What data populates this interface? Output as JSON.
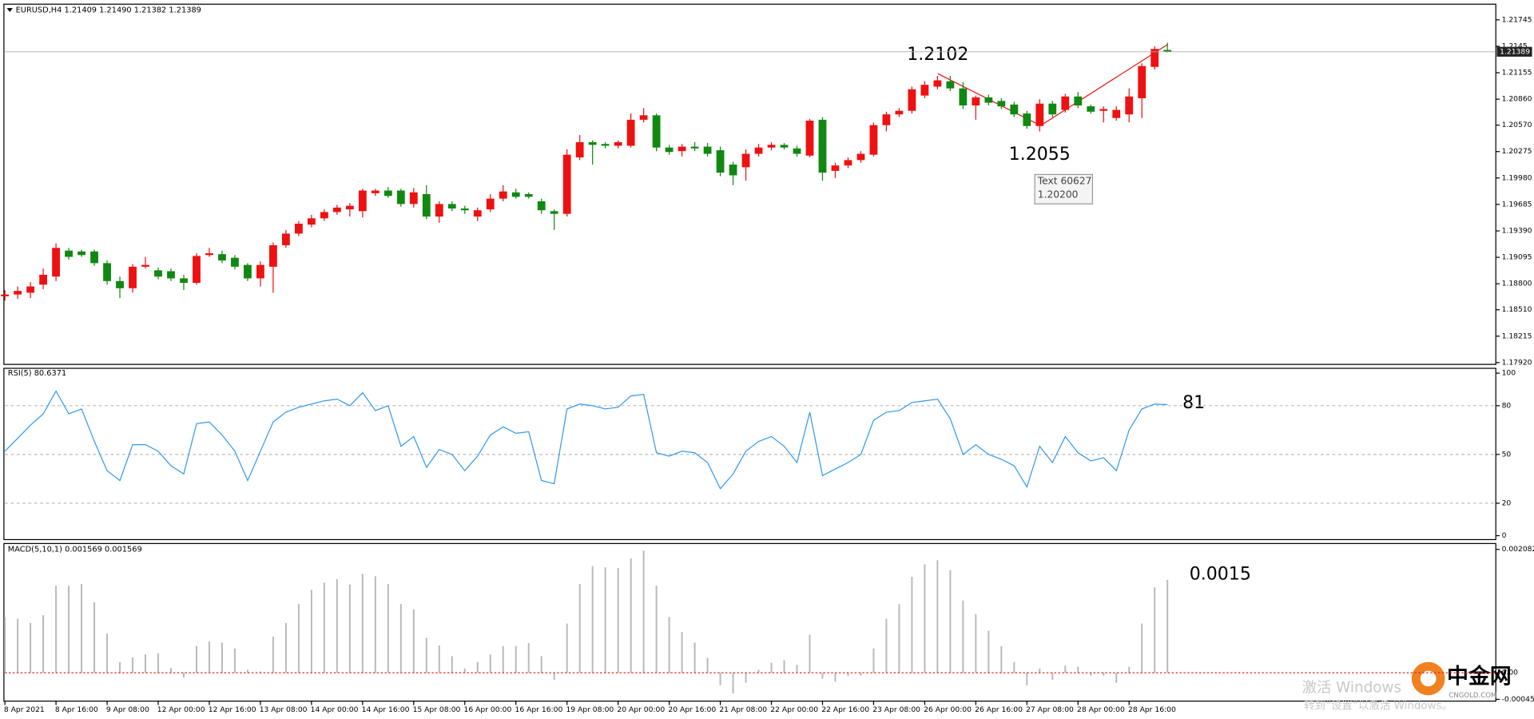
{
  "chart_data": [
    {
      "type": "candlestick",
      "title": "EURUSD,H4  1.21409 1.21490 1.21382 1.21389",
      "up_color": "#ee1111",
      "down_color": "#118811",
      "categories": [
        "8 Apr 2021",
        null,
        null,
        null,
        "8 Apr 16:00",
        null,
        null,
        null,
        "9 Apr 08:00",
        null,
        null,
        null,
        "12 Apr 00:00",
        null,
        null,
        null,
        "12 Apr 16:00",
        null,
        null,
        null,
        "13 Apr 08:00",
        null,
        null,
        null,
        "14 Apr 00:00",
        null,
        null,
        null,
        "14 Apr 16:00",
        null,
        null,
        null,
        "15 Apr 08:00",
        null,
        null,
        null,
        "16 Apr 00:00",
        null,
        null,
        null,
        "16 Apr 16:00",
        null,
        null,
        null,
        "19 Apr 08:00",
        null,
        null,
        null,
        "20 Apr 00:00",
        null,
        null,
        null,
        "20 Apr 16:00",
        null,
        null,
        null,
        "21 Apr 08:00",
        null,
        null,
        null,
        "22 Apr 00:00",
        null,
        null,
        null,
        "22 Apr 16:00",
        null,
        null,
        null,
        "23 Apr 08:00",
        null,
        null,
        null,
        "26 Apr 00:00",
        null,
        null,
        null,
        "26 Apr 16:00",
        null,
        null,
        null,
        "27 Apr 08:00",
        null,
        null,
        null,
        "28 Apr 00:00",
        null,
        null,
        null,
        "28 Apr 16:00",
        null,
        null,
        null
      ],
      "open": [
        1.1866,
        1.1868,
        1.187,
        1.1879,
        1.1888,
        1.1917,
        1.1916,
        1.1916,
        1.1903,
        1.1883,
        1.1875,
        1.1899,
        1.1895,
        1.1894,
        1.1886,
        1.1881,
        1.1912,
        1.1913,
        1.1909,
        1.1901,
        1.1886,
        1.1899,
        1.1923,
        1.1936,
        1.1946,
        1.1953,
        1.196,
        1.1963,
        1.1961,
        1.1981,
        1.1984,
        1.1984,
        1.1969,
        1.198,
        1.1955,
        1.1969,
        1.1964,
        1.1955,
        1.1963,
        1.1975,
        1.1982,
        1.198,
        1.1972,
        1.1961,
        1.1958,
        1.2021,
        1.2038,
        1.2036,
        1.2034,
        1.2034,
        1.2063,
        1.2068,
        1.2032,
        1.2028,
        1.2033,
        1.2033,
        1.2029,
        1.2013,
        1.201,
        1.2025,
        1.2032,
        1.2035,
        1.2031,
        1.2023,
        1.2063,
        1.2006,
        1.2012,
        1.2018,
        1.2024,
        1.2057,
        1.2069,
        1.2073,
        1.209,
        1.21,
        1.2106,
        1.2098,
        1.2079,
        1.2088,
        1.2084,
        1.208,
        1.207,
        1.2056,
        1.2081,
        1.2074,
        1.2089,
        1.2078,
        1.2073,
        1.2065,
        1.2069,
        1.2087,
        1.2122,
        1.21409
      ],
      "high": [
        1.1873,
        1.1877,
        1.1882,
        1.1897,
        1.1925,
        1.192,
        1.1918,
        1.1918,
        1.1906,
        1.1888,
        1.1902,
        1.191,
        1.1898,
        1.1897,
        1.189,
        1.1914,
        1.192,
        1.1917,
        1.1912,
        1.1903,
        1.1905,
        1.1926,
        1.194,
        1.195,
        1.1957,
        1.1963,
        1.1968,
        1.197,
        1.1986,
        1.1986,
        1.1988,
        1.1986,
        1.1987,
        1.199,
        1.1972,
        1.1972,
        1.1967,
        1.1965,
        1.198,
        1.199,
        1.1986,
        1.1982,
        1.1975,
        1.1963,
        1.203,
        1.2046,
        1.204,
        1.2038,
        1.204,
        1.207,
        1.2076,
        1.207,
        1.2035,
        1.2036,
        1.2038,
        1.2037,
        1.2033,
        1.2016,
        1.203,
        1.2036,
        1.2038,
        1.2037,
        1.2034,
        1.2064,
        1.2066,
        1.2015,
        1.2021,
        1.2028,
        1.206,
        1.2072,
        1.2076,
        1.21,
        1.2106,
        1.2112,
        1.2112,
        1.2105,
        1.209,
        1.2091,
        1.2087,
        1.2083,
        1.2073,
        1.2086,
        1.2084,
        1.2092,
        1.2094,
        1.208,
        1.2078,
        1.2078,
        1.2098,
        1.2126,
        1.2145,
        1.2149
      ],
      "low": [
        1.1861,
        1.1863,
        1.1864,
        1.1874,
        1.1883,
        1.1907,
        1.191,
        1.19,
        1.1879,
        1.1864,
        1.187,
        1.1897,
        1.1885,
        1.1883,
        1.1873,
        1.1879,
        1.191,
        1.1903,
        1.1896,
        1.1883,
        1.1877,
        1.187,
        1.192,
        1.1933,
        1.1943,
        1.195,
        1.1957,
        1.1955,
        1.1954,
        1.1978,
        1.1976,
        1.1966,
        1.1965,
        1.1952,
        1.1948,
        1.1961,
        1.1958,
        1.195,
        1.196,
        1.1972,
        1.1975,
        1.1975,
        1.1958,
        1.194,
        1.1955,
        1.2018,
        1.2013,
        1.2031,
        1.2031,
        1.2032,
        1.206,
        1.2028,
        1.2024,
        1.2022,
        1.2028,
        1.2022,
        1.2,
        1.199,
        1.1995,
        1.2022,
        1.2029,
        1.203,
        1.2022,
        1.2021,
        1.1995,
        1.1998,
        1.2009,
        1.2015,
        1.2022,
        1.205,
        1.2066,
        1.207,
        1.2087,
        1.2097,
        1.2095,
        1.2075,
        1.2063,
        1.2079,
        1.2075,
        1.2066,
        1.2053,
        1.205,
        1.2066,
        1.2071,
        1.2076,
        1.207,
        1.206,
        1.2062,
        1.206,
        1.2065,
        1.2119,
        1.21382
      ],
      "close": [
        1.1868,
        1.1872,
        1.1877,
        1.189,
        1.192,
        1.191,
        1.1912,
        1.1903,
        1.1883,
        1.1875,
        1.1899,
        1.1901,
        1.1888,
        1.1886,
        1.1881,
        1.1911,
        1.1914,
        1.1906,
        1.1899,
        1.1886,
        1.1901,
        1.1923,
        1.1936,
        1.1947,
        1.1953,
        1.196,
        1.1965,
        1.1967,
        1.1984,
        1.1984,
        1.1978,
        1.1969,
        1.1982,
        1.1955,
        1.1969,
        1.1964,
        1.1962,
        1.1962,
        1.1975,
        1.1983,
        1.1977,
        1.1977,
        1.1962,
        1.1958,
        1.2024,
        1.2038,
        1.2035,
        1.2034,
        1.2038,
        1.2063,
        1.2068,
        1.2032,
        1.2027,
        1.2033,
        1.2031,
        1.2025,
        1.2004,
        1.2001,
        1.2025,
        1.2032,
        1.2035,
        1.2032,
        1.2025,
        1.2062,
        1.2004,
        1.2012,
        1.2018,
        1.2025,
        1.2057,
        1.2069,
        1.2073,
        1.2097,
        1.2102,
        1.2107,
        1.2098,
        1.2079,
        1.2088,
        1.2082,
        1.2078,
        1.2069,
        1.2056,
        1.2081,
        1.2069,
        1.2089,
        1.2079,
        1.2072,
        1.2075,
        1.2074,
        1.2089,
        1.2123,
        1.2142,
        1.21389
      ],
      "ylim": [
        1.179,
        1.2192
      ],
      "yticks": [
        {
          "value": 1.1792,
          "label": "1.17920"
        },
        1.18215,
        {
          "value": 1.1851,
          "label": "1.18510"
        },
        {
          "value": 1.188,
          "label": "1.18800"
        },
        1.19095,
        {
          "value": 1.1939,
          "label": "1.19390"
        },
        1.19685,
        {
          "value": 1.1998,
          "label": "1.19980"
        },
        1.20275,
        {
          "value": 1.2057,
          "label": "1.20570"
        },
        {
          "value": 1.2086,
          "label": "1.20860"
        },
        1.21155,
        1.2145,
        1.21745
      ],
      "annotations": [
        "1.2102",
        "1.2055"
      ],
      "tooltip": [
        "Text 60627",
        "1.20200"
      ]
    },
    {
      "type": "line",
      "title": "RSI(5) 80.6371",
      "color": "#3399ee",
      "values": [
        52,
        60,
        68,
        75,
        89,
        75,
        78,
        58,
        40,
        34,
        56,
        56,
        52,
        43,
        38,
        69,
        70,
        62,
        52,
        34,
        52,
        70,
        76,
        79,
        81,
        83,
        84,
        80,
        88,
        77,
        80,
        55,
        61,
        42,
        53,
        50,
        40,
        49,
        62,
        67,
        63,
        64,
        34,
        32,
        78,
        81,
        80,
        78,
        79,
        86,
        87,
        51,
        49,
        52,
        51,
        45,
        29,
        38,
        52,
        58,
        61,
        55,
        45,
        76,
        37,
        41,
        45,
        50,
        71,
        76,
        77,
        82,
        83,
        84,
        72,
        50,
        56,
        50,
        47,
        43,
        30,
        55,
        45,
        61,
        51,
        46,
        48,
        40,
        65,
        78,
        81,
        80.6371
      ],
      "ylim": [
        -2.4,
        103
      ],
      "yticks": [
        0,
        20,
        50,
        80,
        100
      ],
      "grid": true,
      "annotations": [
        "81"
      ]
    },
    {
      "type": "bar",
      "title": "MACD(5,10,1) 0.001569 0.001569",
      "color": "#b8b8b8",
      "zero_color": "#ee2222",
      "values": [
        0.00094,
        0.00091,
        0.00084,
        0.00097,
        0.00147,
        0.00147,
        0.0015,
        0.00119,
        0.00066,
        0.00018,
        0.00026,
        0.00031,
        0.00033,
        8e-05,
        -8e-05,
        0.00045,
        0.00053,
        0.00051,
        0.00041,
        5e-05,
        2e-05,
        0.00061,
        0.00084,
        0.00116,
        0.0014,
        0.00152,
        0.00158,
        0.00149,
        0.00167,
        0.00163,
        0.0015,
        0.00116,
        0.00107,
        0.00059,
        0.00046,
        0.00028,
        7e-05,
        0.00018,
        0.00031,
        0.00045,
        0.00045,
        0.0005,
        0.00028,
        -0.00012,
        0.00083,
        0.0015,
        0.0018,
        0.00178,
        0.00177,
        0.00193,
        0.00206,
        0.00147,
        0.00094,
        0.00069,
        0.00051,
        0.00025,
        -0.00021,
        -0.00035,
        -0.00017,
        5e-05,
        0.00017,
        0.00021,
        0.00013,
        0.00064,
        -0.0001,
        -0.00015,
        -5e-05,
        -5e-05,
        0.00041,
        0.00091,
        0.00116,
        0.00162,
        0.00183,
        0.0019,
        0.00173,
        0.00122,
        0.00099,
        0.00071,
        0.00045,
        0.00018,
        -0.00021,
        7e-05,
        -0.00012,
        0.00012,
        0.0001,
        -5e-05,
        -5e-05,
        -0.00017,
        0.0001,
        0.00083,
        0.00144,
        0.001569
      ],
      "ylim": [
        -0.000479,
        0.002181
      ],
      "yticks": [
        0.002082,
        {
          "value": 0,
          "label": "0.00"
        },
        -0.00045
      ],
      "annotations": [
        "0.0015"
      ]
    }
  ],
  "overlay": {
    "watermark": [
      "激活 Windows",
      "转到“设置”以激活 Windows。"
    ],
    "logo": [
      "中金网",
      "CNGOLD.COM"
    ]
  }
}
